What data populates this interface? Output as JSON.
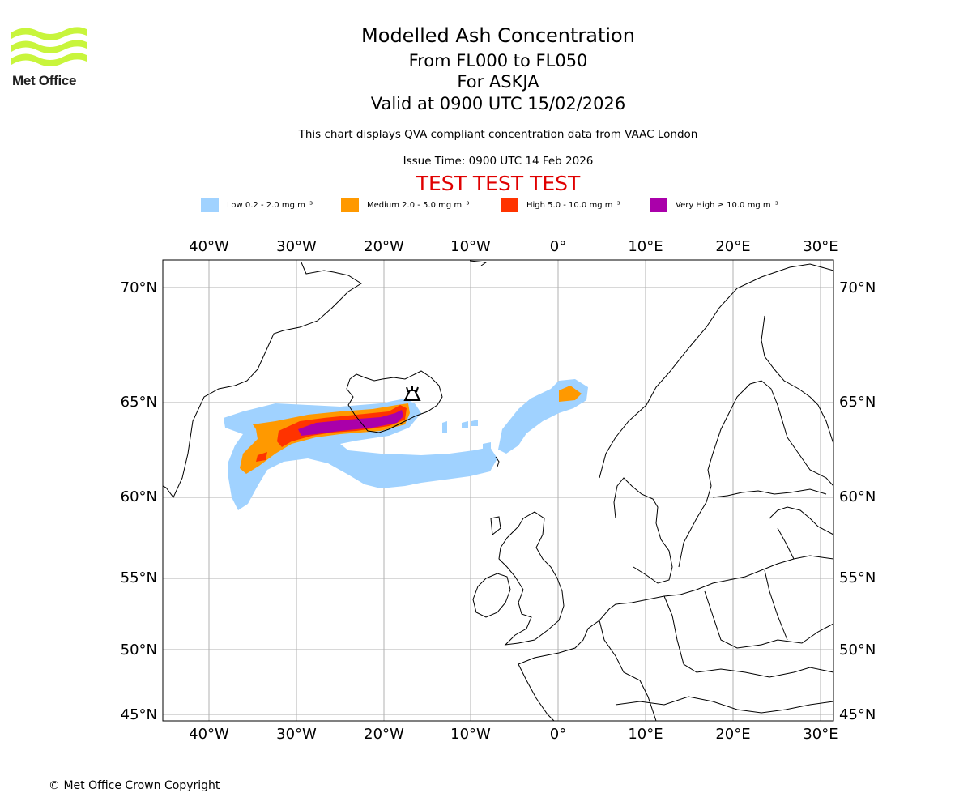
{
  "logo": {
    "text": "Met Office",
    "color": "#c8f53c"
  },
  "titles": {
    "main": "Modelled Ash Concentration",
    "levels": "From FL000 to FL050",
    "volcano": "For ASKJA",
    "valid": "Valid at 0900 UTC 15/02/2026",
    "description": "This chart displays QVA compliant concentration data from VAAC London",
    "issue": "Issue Time: 0900 UTC 14 Feb 2026",
    "test_banner": "TEST TEST TEST"
  },
  "legend": [
    {
      "label": "Low 0.2 - 2.0 mg m⁻³",
      "color": "#a0d2ff"
    },
    {
      "label": "Medium 2.0 - 5.0 mg m⁻³",
      "color": "#ff9900"
    },
    {
      "label": "High 5.0 - 10.0 mg m⁻³",
      "color": "#ff3300"
    },
    {
      "label": "Very High ≥ 10.0 mg m⁻³",
      "color": "#aa00aa"
    }
  ],
  "map": {
    "lon_labels": [
      "40°W",
      "30°W",
      "20°W",
      "10°W",
      "0°",
      "10°E",
      "20°E",
      "30°E"
    ],
    "lat_labels": [
      "70°N",
      "65°N",
      "60°N",
      "55°N",
      "50°N",
      "45°N"
    ],
    "volcano_icon": "volcano-symbol"
  },
  "copyright": "© Met Office Crown Copyright"
}
